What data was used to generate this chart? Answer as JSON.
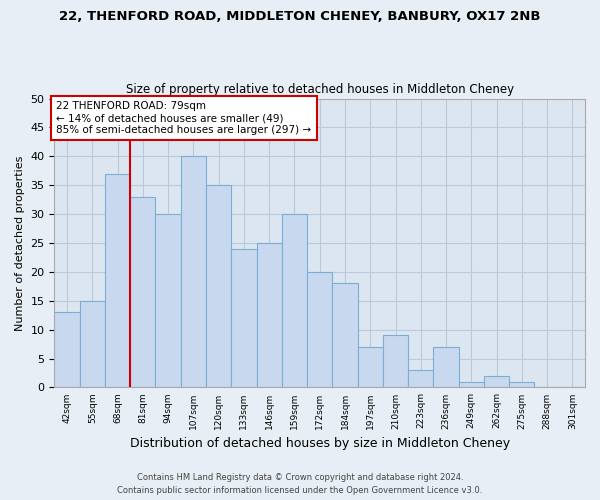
{
  "title1": "22, THENFORD ROAD, MIDDLETON CHENEY, BANBURY, OX17 2NB",
  "title2": "Size of property relative to detached houses in Middleton Cheney",
  "xlabel": "Distribution of detached houses by size in Middleton Cheney",
  "ylabel": "Number of detached properties",
  "bin_labels": [
    "42sqm",
    "55sqm",
    "68sqm",
    "81sqm",
    "94sqm",
    "107sqm",
    "120sqm",
    "133sqm",
    "146sqm",
    "159sqm",
    "172sqm",
    "184sqm",
    "197sqm",
    "210sqm",
    "223sqm",
    "236sqm",
    "249sqm",
    "262sqm",
    "275sqm",
    "288sqm",
    "301sqm"
  ],
  "bar_heights": [
    13,
    15,
    37,
    33,
    30,
    40,
    35,
    24,
    25,
    30,
    20,
    18,
    7,
    9,
    3,
    7,
    1,
    2,
    1,
    0,
    0
  ],
  "bar_color": "#c8d9ef",
  "bar_edge_color": "#7aaed4",
  "highlight_line_color": "#cc0000",
  "annotation_line1": "22 THENFORD ROAD: 79sqm",
  "annotation_line2": "← 14% of detached houses are smaller (49)",
  "annotation_line3": "85% of semi-detached houses are larger (297) →",
  "annotation_box_edge": "#cc0000",
  "ylim": [
    0,
    50
  ],
  "yticks": [
    0,
    5,
    10,
    15,
    20,
    25,
    30,
    35,
    40,
    45,
    50
  ],
  "footer1": "Contains HM Land Registry data © Crown copyright and database right 2024.",
  "footer2": "Contains public sector information licensed under the Open Government Licence v3.0.",
  "bg_color": "#e8eef5",
  "plot_bg_color": "#dce6f0",
  "grid_color": "#b8c9de"
}
